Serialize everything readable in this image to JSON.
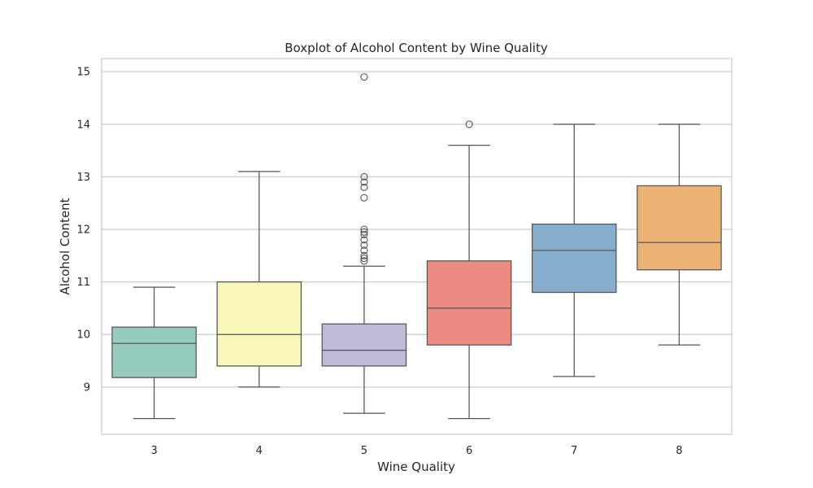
{
  "chart_data": {
    "type": "boxplot",
    "title": "Boxplot of Alcohol Content by Wine Quality",
    "xlabel": "Wine Quality",
    "ylabel": "Alcohol Content",
    "ylim": [
      8.1,
      15.25
    ],
    "yticks": [
      9,
      10,
      11,
      12,
      13,
      14,
      15
    ],
    "grid": "horizontal",
    "categories": [
      "3",
      "4",
      "5",
      "6",
      "7",
      "8"
    ],
    "boxes": [
      {
        "category": "3",
        "whisker_low": 8.4,
        "q1": 9.18,
        "median": 9.83,
        "q3": 10.14,
        "whisker_high": 10.9,
        "outliers": [],
        "color": "#96cbbf"
      },
      {
        "category": "4",
        "whisker_low": 9.0,
        "q1": 9.4,
        "median": 10.0,
        "q3": 11.0,
        "whisker_high": 13.1,
        "outliers": [],
        "color": "#f7f7b9"
      },
      {
        "category": "5",
        "whisker_low": 8.5,
        "q1": 9.4,
        "median": 9.7,
        "q3": 10.2,
        "whisker_high": 11.3,
        "outliers": [
          11.4,
          11.45,
          11.5,
          11.6,
          11.7,
          11.8,
          11.9,
          11.95,
          12.0,
          12.6,
          12.8,
          12.9,
          13.0,
          14.9
        ],
        "color": "#bfbbd8"
      },
      {
        "category": "6",
        "whisker_low": 8.4,
        "q1": 9.8,
        "median": 10.5,
        "q3": 11.4,
        "whisker_high": 13.6,
        "outliers": [
          14.0
        ],
        "color": "#eb8b81"
      },
      {
        "category": "7",
        "whisker_low": 9.2,
        "q1": 10.8,
        "median": 11.6,
        "q3": 12.1,
        "whisker_high": 14.0,
        "outliers": [],
        "color": "#86aecc"
      },
      {
        "category": "8",
        "whisker_low": 9.8,
        "q1": 11.23,
        "median": 11.75,
        "q3": 12.83,
        "whisker_high": 14.0,
        "outliers": [],
        "color": "#ecb274"
      }
    ]
  }
}
